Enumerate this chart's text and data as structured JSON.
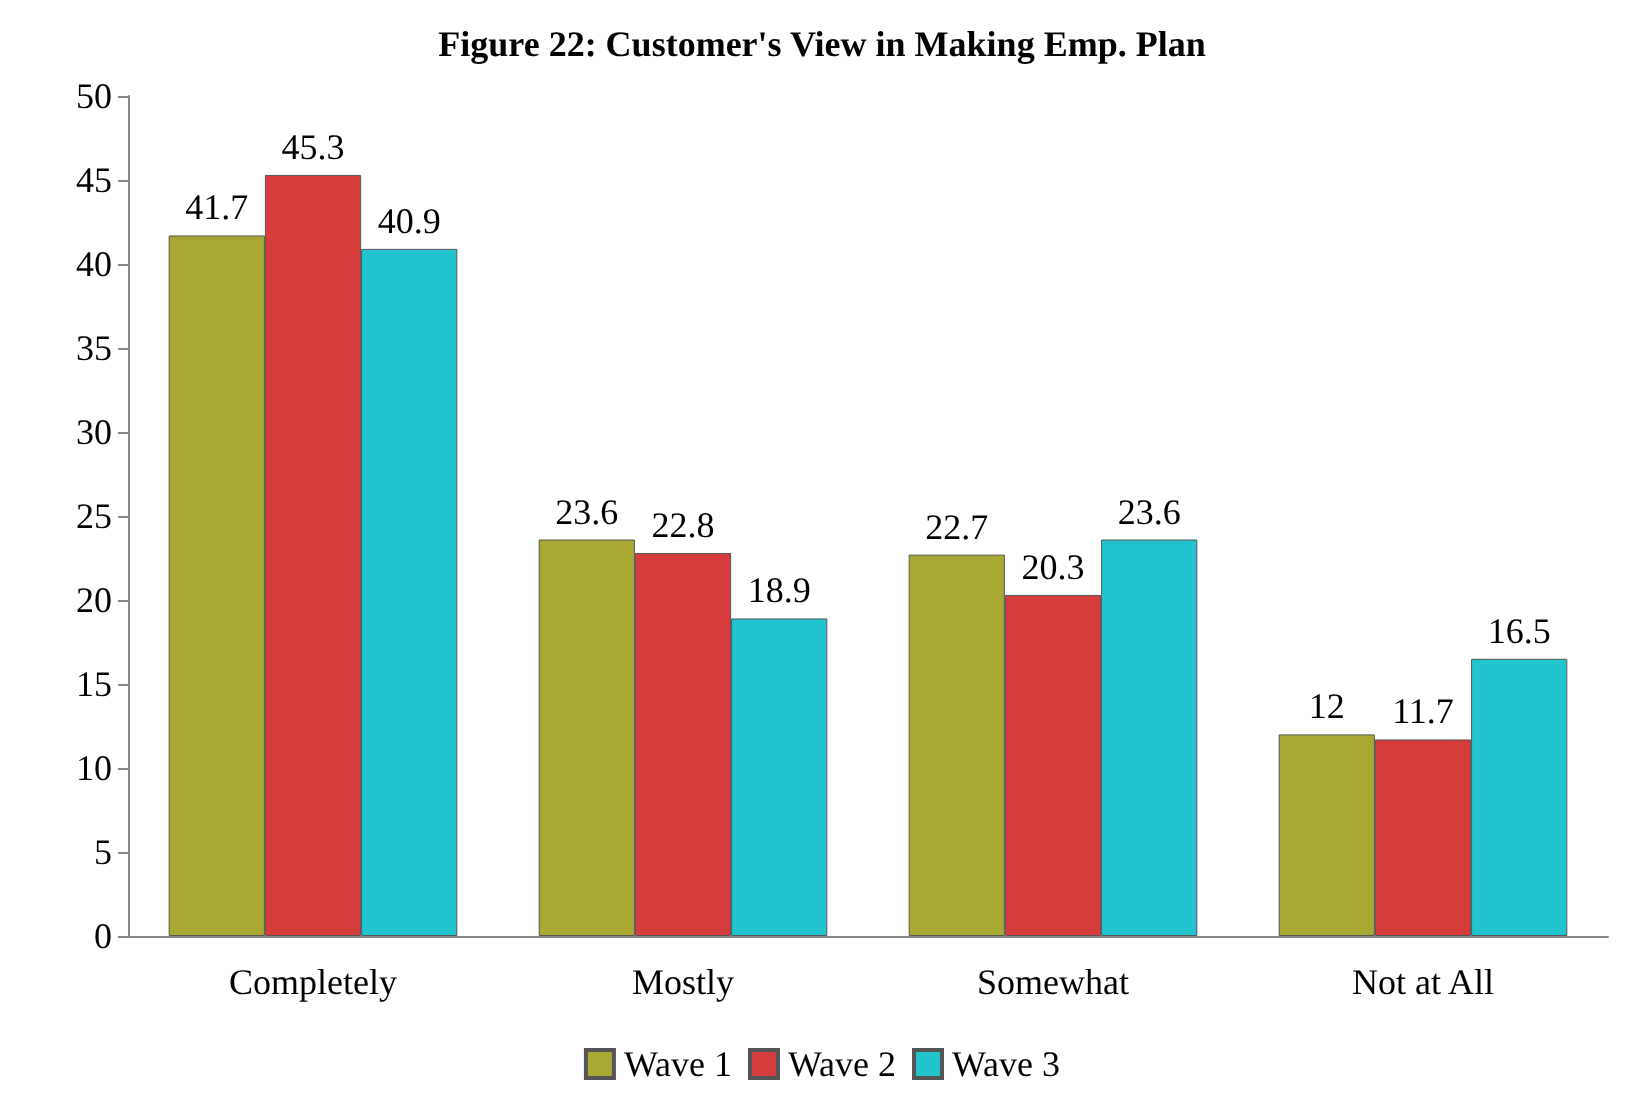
{
  "chart_data": {
    "type": "bar",
    "title": "Figure 22: Customer's View in Making Emp. Plan",
    "categories": [
      "Completely",
      "Mostly",
      "Somewhat",
      "Not at All"
    ],
    "series": [
      {
        "name": "Wave 1",
        "color": "#a8a832",
        "values": [
          41.7,
          23.6,
          22.7,
          12
        ]
      },
      {
        "name": "Wave 2",
        "color": "#d63c3c",
        "values": [
          45.3,
          22.8,
          20.3,
          11.7
        ]
      },
      {
        "name": "Wave 3",
        "color": "#22c4d0",
        "values": [
          40.9,
          18.9,
          23.6,
          16.5
        ]
      }
    ],
    "ylim": [
      0,
      50
    ],
    "yticks": [
      0,
      5,
      10,
      15,
      20,
      25,
      30,
      35,
      40,
      45,
      50
    ],
    "data_labels": true,
    "legend": "bottom",
    "grid": false
  }
}
